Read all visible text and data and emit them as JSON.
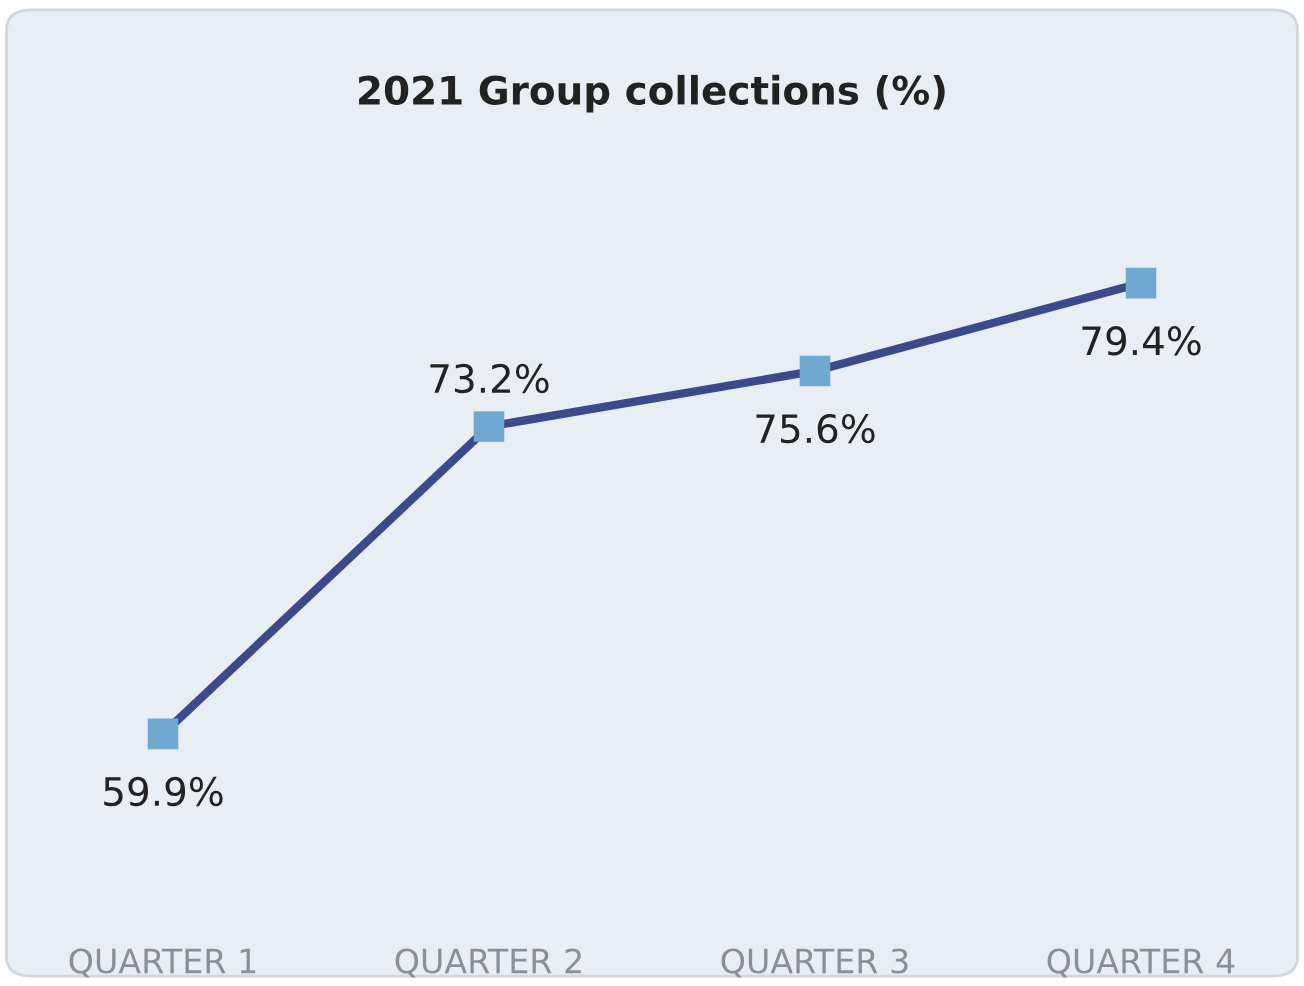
{
  "chart_data": {
    "type": "line",
    "title": "2021 Group collections (%)",
    "categories": [
      "QUARTER 1",
      "QUARTER 2",
      "QUARTER 3",
      "QUARTER 4"
    ],
    "series": [
      {
        "color": "#3b4a8a",
        "values": [
          59.9,
          73.2,
          75.6,
          79.4
        ],
        "value_labels": [
          "59.9%",
          "73.2%",
          "75.6%",
          "79.4%"
        ]
      }
    ],
    "marker": "square",
    "line_style": "solid",
    "grid": false,
    "legend": false
  }
}
